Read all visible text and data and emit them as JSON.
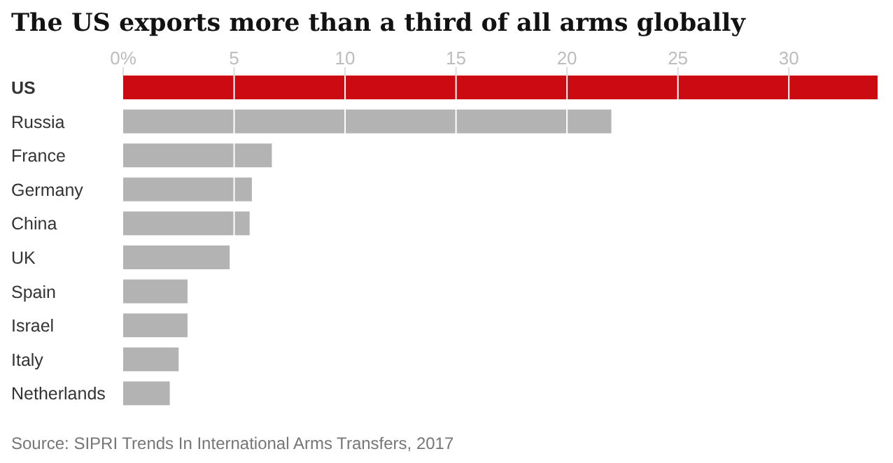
{
  "chart_data": {
    "type": "bar",
    "orientation": "horizontal",
    "title": "The US exports more than a third of all arms globally",
    "categories": [
      "US",
      "Russia",
      "France",
      "Germany",
      "China",
      "UK",
      "Spain",
      "Israel",
      "Italy",
      "Netherlands"
    ],
    "values": [
      34,
      22,
      6.7,
      5.8,
      5.7,
      4.8,
      2.9,
      2.9,
      2.5,
      2.1
    ],
    "colors": [
      "#cc0a11",
      "#b3b3b3",
      "#b3b3b3",
      "#b3b3b3",
      "#b3b3b3",
      "#b3b3b3",
      "#b3b3b3",
      "#b3b3b3",
      "#b3b3b3",
      "#b3b3b3"
    ],
    "xlim": [
      0,
      34
    ],
    "xticks": [
      {
        "value": 0,
        "label": "0%"
      },
      5,
      10,
      15,
      20,
      25,
      30
    ],
    "grid": "x",
    "annotations": [
      "Source: SIPRI Trends In International Arms Transfers, 2017"
    ]
  }
}
